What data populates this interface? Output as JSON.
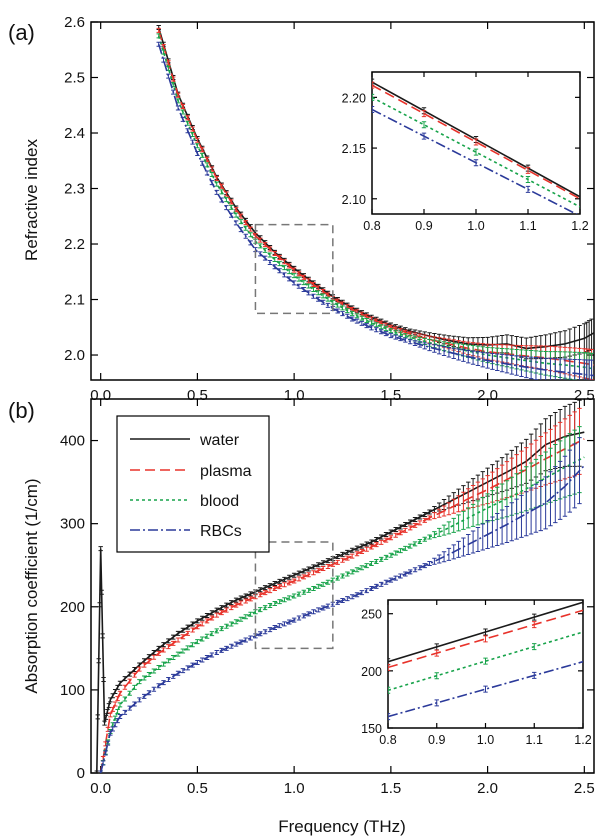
{
  "figure": {
    "xlabel": "Frequency (THz)"
  },
  "chart_data": [
    {
      "type": "line",
      "panel_label": "(a)",
      "ylabel": "Refractive index",
      "xlim": [
        -0.05,
        2.55
      ],
      "ylim": [
        1.955,
        2.6
      ],
      "xticks": [
        "0.0",
        "0.5",
        "1.0",
        "1.5",
        "2.0",
        "2.5"
      ],
      "yticks": [
        "2.0",
        "2.1",
        "2.2",
        "2.3",
        "2.4",
        "2.5",
        "2.6"
      ],
      "error_bars": true,
      "series": [
        {
          "name": "water",
          "color": "#1a1a1a",
          "dash": "solid",
          "x": [
            0.3,
            0.4,
            0.5,
            0.6,
            0.7,
            0.8,
            0.9,
            1.0,
            1.1,
            1.2,
            1.3,
            1.4,
            1.5,
            1.6,
            1.7,
            1.8,
            1.9,
            2.0,
            2.1,
            2.2,
            2.3,
            2.4,
            2.5,
            2.55
          ],
          "y": [
            2.59,
            2.47,
            2.39,
            2.32,
            2.265,
            2.22,
            2.185,
            2.156,
            2.13,
            2.105,
            2.085,
            2.068,
            2.054,
            2.043,
            2.034,
            2.026,
            2.02,
            2.018,
            2.02,
            2.012,
            2.015,
            2.02,
            2.03,
            2.04
          ]
        },
        {
          "name": "plasma",
          "color": "#e8322a",
          "dash": "dashed",
          "x": [
            0.3,
            0.4,
            0.5,
            0.6,
            0.7,
            0.8,
            0.9,
            1.0,
            1.1,
            1.2,
            1.3,
            1.4,
            1.5,
            1.6,
            1.7,
            1.8,
            1.9,
            2.0,
            2.1,
            2.2,
            2.3,
            2.4,
            2.5,
            2.55
          ],
          "y": [
            2.585,
            2.468,
            2.387,
            2.318,
            2.262,
            2.215,
            2.183,
            2.153,
            2.127,
            2.102,
            2.082,
            2.065,
            2.05,
            2.038,
            2.028,
            2.02,
            2.012,
            2.006,
            2.002,
            1.998,
            1.995,
            1.99,
            1.985,
            1.982
          ]
        },
        {
          "name": "blood",
          "color": "#17a34a",
          "dash": "dotted",
          "x": [
            0.3,
            0.4,
            0.5,
            0.6,
            0.7,
            0.8,
            0.9,
            1.0,
            1.1,
            1.2,
            1.3,
            1.4,
            1.5,
            1.6,
            1.7,
            1.8,
            1.9,
            2.0,
            2.1,
            2.2,
            2.3,
            2.4,
            2.5,
            2.55
          ],
          "y": [
            2.575,
            2.458,
            2.377,
            2.308,
            2.252,
            2.205,
            2.172,
            2.143,
            2.118,
            2.095,
            2.075,
            2.058,
            2.044,
            2.032,
            2.022,
            2.014,
            2.007,
            2.0,
            1.995,
            1.99,
            1.985,
            1.982,
            1.978,
            1.975
          ]
        },
        {
          "name": "RBCs",
          "color": "#2b3a9a",
          "dash": "dashdot",
          "x": [
            0.3,
            0.4,
            0.5,
            0.6,
            0.7,
            0.8,
            0.9,
            1.0,
            1.1,
            1.2,
            1.3,
            1.4,
            1.5,
            1.6,
            1.7,
            1.8,
            1.9,
            2.0,
            2.1,
            2.2,
            2.3,
            2.4,
            2.5,
            2.55
          ],
          "y": [
            2.56,
            2.445,
            2.363,
            2.293,
            2.238,
            2.19,
            2.159,
            2.13,
            2.106,
            2.084,
            2.065,
            2.049,
            2.035,
            2.024,
            2.014,
            2.005,
            1.997,
            1.99,
            1.984,
            1.978,
            1.973,
            1.969,
            1.965,
            1.963
          ]
        }
      ],
      "highlight_box": {
        "x": [
          0.8,
          1.2
        ],
        "y": [
          2.075,
          2.235
        ]
      },
      "inset": {
        "xlim": [
          0.8,
          1.2
        ],
        "ylim": [
          2.085,
          2.225
        ],
        "xticks": [
          "0.8",
          "0.9",
          "1.0",
          "1.1",
          "1.2"
        ],
        "yticks": [
          "2.10",
          "2.15",
          "2.20"
        ],
        "series": [
          {
            "name": "water",
            "x": [
              0.8,
              1.2
            ],
            "y": [
              2.215,
              2.102
            ]
          },
          {
            "name": "plasma",
            "x": [
              0.8,
              1.2
            ],
            "y": [
              2.212,
              2.1
            ]
          },
          {
            "name": "blood",
            "x": [
              0.8,
              1.2
            ],
            "y": [
              2.2,
              2.092
            ]
          },
          {
            "name": "RBCs",
            "x": [
              0.8,
              1.2
            ],
            "y": [
              2.188,
              2.083
            ]
          }
        ]
      }
    },
    {
      "type": "line",
      "panel_label": "(b)",
      "ylabel": "Absorption coefficient (1/cm)",
      "xlim": [
        -0.05,
        2.55
      ],
      "ylim": [
        0,
        450
      ],
      "xticks": [
        "0.0",
        "0.5",
        "1.0",
        "1.5",
        "2.0",
        "2.5"
      ],
      "yticks": [
        "0",
        "100",
        "200",
        "300",
        "400"
      ],
      "legend": {
        "position": "top-left",
        "entries": [
          "water",
          "plasma",
          "blood",
          "RBCs"
        ]
      },
      "error_bars": true,
      "series": [
        {
          "name": "water",
          "color": "#1a1a1a",
          "dash": "solid",
          "x": [
            -0.02,
            0.0,
            0.02,
            0.05,
            0.1,
            0.2,
            0.3,
            0.4,
            0.5,
            0.6,
            0.7,
            0.8,
            0.9,
            1.0,
            1.1,
            1.2,
            1.3,
            1.4,
            1.5,
            1.6,
            1.7,
            1.8,
            1.9,
            2.0,
            2.1,
            2.2,
            2.3,
            2.4,
            2.5
          ],
          "y": [
            0,
            270,
            60,
            88,
            108,
            130,
            150,
            168,
            183,
            196,
            208,
            218,
            228,
            238,
            248,
            258,
            268,
            278,
            290,
            302,
            314,
            326,
            338,
            350,
            362,
            375,
            395,
            405,
            410
          ]
        },
        {
          "name": "plasma",
          "color": "#e8322a",
          "dash": "dashed",
          "x": [
            0.0,
            0.05,
            0.1,
            0.2,
            0.3,
            0.4,
            0.5,
            0.6,
            0.7,
            0.8,
            0.9,
            1.0,
            1.1,
            1.2,
            1.3,
            1.4,
            1.5,
            1.6,
            1.7,
            1.8,
            1.9,
            2.0,
            2.1,
            2.2,
            2.3,
            2.4,
            2.5
          ],
          "y": [
            0,
            70,
            96,
            125,
            144,
            160,
            176,
            190,
            202,
            212,
            222,
            231,
            241,
            251,
            261,
            272,
            283,
            295,
            307,
            318,
            330,
            341,
            353,
            365,
            378,
            390,
            402
          ]
        },
        {
          "name": "blood",
          "color": "#17a34a",
          "dash": "dotted",
          "x": [
            0.0,
            0.05,
            0.1,
            0.2,
            0.3,
            0.4,
            0.5,
            0.6,
            0.7,
            0.8,
            0.9,
            1.0,
            1.1,
            1.2,
            1.3,
            1.4,
            1.5,
            1.6,
            1.7,
            1.8,
            1.9,
            2.0,
            2.1,
            2.2,
            2.3,
            2.4,
            2.5
          ],
          "y": [
            0,
            50,
            82,
            110,
            127,
            143,
            158,
            171,
            182,
            194,
            204,
            213,
            222,
            232,
            242,
            252,
            262,
            273,
            284,
            295,
            307,
            319,
            330,
            342,
            355,
            368,
            380
          ]
        },
        {
          "name": "RBCs",
          "color": "#2b3a9a",
          "dash": "dashdot",
          "x": [
            0.0,
            0.05,
            0.1,
            0.2,
            0.3,
            0.4,
            0.5,
            0.6,
            0.7,
            0.8,
            0.9,
            1.0,
            1.1,
            1.2,
            1.3,
            1.4,
            1.5,
            1.6,
            1.7,
            1.8,
            1.9,
            2.0,
            2.1,
            2.2,
            2.3,
            2.4,
            2.5
          ],
          "y": [
            0,
            48,
            68,
            88,
            105,
            120,
            133,
            145,
            155,
            165,
            175,
            184,
            194,
            203,
            212,
            222,
            232,
            242,
            252,
            263,
            275,
            287,
            299,
            312,
            325,
            345,
            370
          ]
        }
      ],
      "highlight_box": {
        "x": [
          0.8,
          1.2
        ],
        "y": [
          150,
          278
        ]
      },
      "inset": {
        "xlim": [
          0.8,
          1.2
        ],
        "ylim": [
          150,
          262
        ],
        "xticks": [
          "0.8",
          "0.9",
          "1.0",
          "1.1",
          "1.2"
        ],
        "yticks": [
          "150",
          "200",
          "250"
        ],
        "series": [
          {
            "name": "water",
            "x": [
              0.8,
              1.2
            ],
            "y": [
              208,
              260
            ]
          },
          {
            "name": "plasma",
            "x": [
              0.8,
              1.2
            ],
            "y": [
              203,
              253
            ]
          },
          {
            "name": "blood",
            "x": [
              0.8,
              1.2
            ],
            "y": [
              183,
              234
            ]
          },
          {
            "name": "RBCs",
            "x": [
              0.8,
              1.2
            ],
            "y": [
              160,
              208
            ]
          }
        ]
      }
    }
  ]
}
